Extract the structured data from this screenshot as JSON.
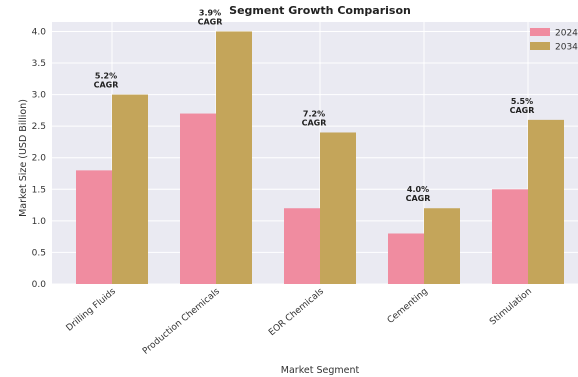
{
  "chart_data": {
    "type": "bar",
    "title": "Segment Growth Comparison",
    "xlabel": "Market Segment",
    "ylabel": "Market Size (USD Billion)",
    "categories": [
      "Drilling Fluids",
      "Production Chemicals",
      "EOR Chemicals",
      "Cementing",
      "Stimulation"
    ],
    "series": [
      {
        "name": "2024",
        "values": [
          1.8,
          2.7,
          1.2,
          0.8,
          1.5
        ],
        "color": "#f08ca0"
      },
      {
        "name": "2034",
        "values": [
          3.0,
          4.0,
          2.4,
          1.2,
          2.6
        ],
        "color": "#c4a55a"
      }
    ],
    "annotations": [
      "5.2%\nCAGR",
      "3.9%\nCAGR",
      "7.2%\nCAGR",
      "4.0%\nCAGR",
      "5.5%\nCAGR"
    ],
    "ylim": [
      0,
      4.15
    ],
    "yticks": [
      0.0,
      0.5,
      1.0,
      1.5,
      2.0,
      2.5,
      3.0,
      3.5,
      4.0
    ],
    "ytick_labels": [
      "0.0",
      "0.5",
      "1.0",
      "1.5",
      "2.0",
      "2.5",
      "3.0",
      "3.5",
      "4.0"
    ],
    "grid": true,
    "legend_position": "top-right",
    "plot_background": "#eaeaf2"
  }
}
